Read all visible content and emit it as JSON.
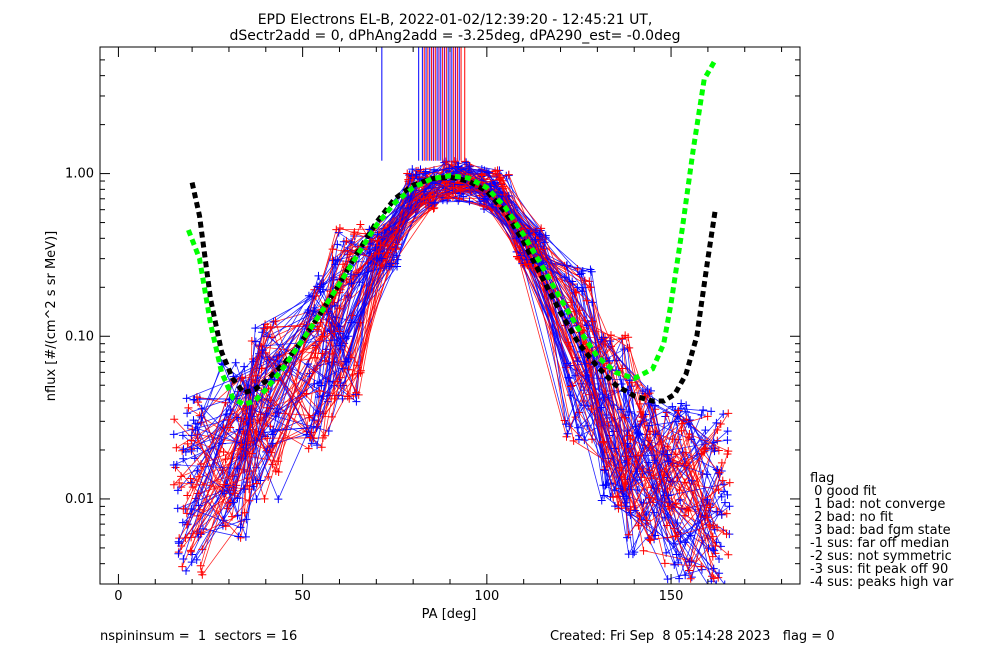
{
  "chart_data": {
    "type": "line",
    "title_line1": "EPD Electrons EL-B, 2022-01-02/12:39:20 - 12:45:21 UT,",
    "title_line2": "dSectr2add = 0, dPhAng2add = -3.25deg, dPA290_est=  -0.0deg",
    "xlabel": "PA [deg]",
    "ylabel": "nflux [#/(cm^2 s sr MeV)]",
    "xlim": [
      -5,
      185
    ],
    "ylim": [
      0.003,
      6.0
    ],
    "yscale": "log",
    "x_ticks": [
      0,
      50,
      100,
      150
    ],
    "y_ticks": [
      {
        "value": 0.01,
        "label": "0.01"
      },
      {
        "value": 0.1,
        "label": "0.10"
      },
      {
        "value": 1.0,
        "label": "1.00"
      }
    ],
    "colors": {
      "red": "#ff0000",
      "blue": "#0000ff",
      "green": "#00ff00",
      "black": "#000000"
    },
    "fit_curves": [
      {
        "color": "black",
        "style": "dashed",
        "x": [
          20,
          22,
          25,
          28,
          31,
          34,
          37,
          40,
          45,
          50,
          55,
          60,
          65,
          70,
          75,
          80,
          85,
          90,
          95,
          100,
          105,
          110,
          115,
          120,
          125,
          130,
          135,
          140,
          145,
          148,
          151,
          154,
          157,
          160,
          162
        ],
        "y": [
          0.88,
          0.55,
          0.17,
          0.08,
          0.055,
          0.045,
          0.047,
          0.053,
          0.068,
          0.095,
          0.14,
          0.21,
          0.33,
          0.5,
          0.7,
          0.85,
          0.93,
          0.95,
          0.9,
          0.78,
          0.58,
          0.38,
          0.23,
          0.14,
          0.09,
          0.065,
          0.05,
          0.043,
          0.04,
          0.04,
          0.044,
          0.058,
          0.1,
          0.3,
          0.6
        ]
      },
      {
        "color": "green",
        "style": "dashed",
        "x": [
          19,
          22,
          25,
          28,
          31,
          34,
          37,
          40,
          45,
          50,
          55,
          60,
          65,
          70,
          75,
          80,
          85,
          90,
          95,
          100,
          105,
          110,
          115,
          120,
          125,
          130,
          135,
          140,
          145,
          148,
          150,
          153,
          156,
          159,
          162
        ],
        "y": [
          0.45,
          0.3,
          0.12,
          0.06,
          0.042,
          0.038,
          0.04,
          0.047,
          0.065,
          0.095,
          0.14,
          0.21,
          0.32,
          0.48,
          0.66,
          0.82,
          0.93,
          0.97,
          0.94,
          0.82,
          0.62,
          0.42,
          0.27,
          0.17,
          0.11,
          0.075,
          0.06,
          0.055,
          0.063,
          0.09,
          0.16,
          0.45,
          1.4,
          3.8,
          5.0
        ]
      }
    ],
    "vertical_spikes": {
      "y_bottom": 1.2,
      "y_top": 6.0,
      "blue_x": [
        71.5,
        81.5,
        82.5,
        83.5,
        84.5,
        85.5,
        86.5,
        87.5,
        88.5,
        89.5,
        90.5,
        91.5,
        92.5
      ],
      "red_x": [
        83,
        84,
        85,
        86,
        87,
        88,
        89,
        90,
        91,
        92,
        93,
        94
      ],
      "purple_x": [
        85.5,
        87,
        88.5,
        90,
        91.5
      ]
    }
  },
  "legend": {
    "title": "flag",
    "items": [
      " 0 good fit",
      " 1 bad: not converge",
      " 2 bad: no fit",
      " 3 bad: bad fgm state",
      "-1 sus: far off median",
      "-2 sus: not symmetric",
      "-3 sus: fit peak off 90",
      "-4 sus: peaks high var"
    ]
  },
  "footer": {
    "left": "nspininsum =  1  sectors = 16",
    "right": "Created: Fri Sep  8 05:14:28 2023   flag = 0"
  }
}
